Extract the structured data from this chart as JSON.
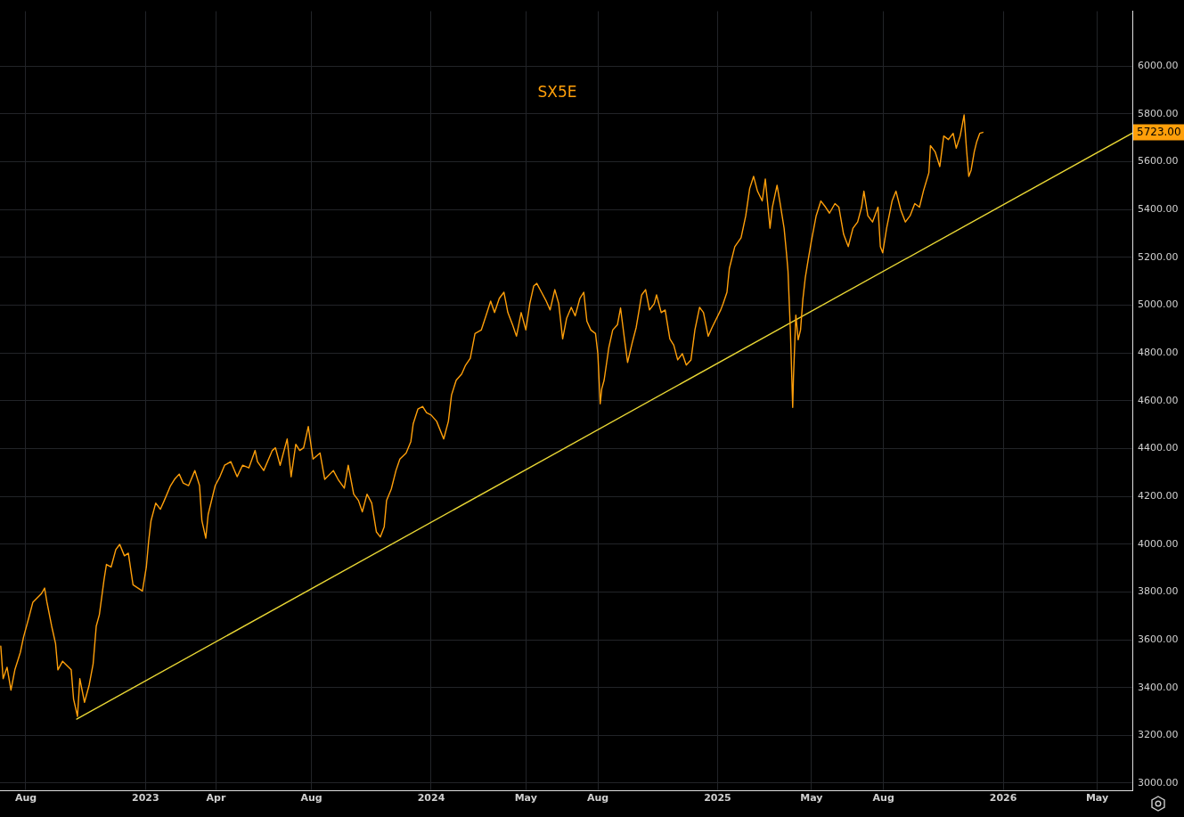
{
  "chart_data": {
    "type": "line",
    "title": "SX5E",
    "marker": "none",
    "grid": true,
    "xlim": [
      "2022-06-29",
      "2026-06-15"
    ],
    "ylim": [
      2970,
      6230
    ],
    "xticks": [
      {
        "value": "2022-08-01",
        "label": "Aug"
      },
      {
        "value": "2023-01-01",
        "label": "2023"
      },
      {
        "value": "2023-04-01",
        "label": "Apr"
      },
      {
        "value": "2023-08-01",
        "label": "Aug"
      },
      {
        "value": "2024-01-01",
        "label": "2024"
      },
      {
        "value": "2024-05-01",
        "label": "May"
      },
      {
        "value": "2024-08-01",
        "label": "Aug"
      },
      {
        "value": "2025-01-01",
        "label": "2025"
      },
      {
        "value": "2025-05-01",
        "label": "May"
      },
      {
        "value": "2025-08-01",
        "label": "Aug"
      },
      {
        "value": "2026-01-01",
        "label": "2026"
      },
      {
        "value": "2026-05-01",
        "label": "May"
      }
    ],
    "yticks": [
      {
        "value": 3000,
        "label": "3000.00"
      },
      {
        "value": 3200,
        "label": "3200.00"
      },
      {
        "value": 3400,
        "label": "3400.00"
      },
      {
        "value": 3600,
        "label": "3600.00"
      },
      {
        "value": 3800,
        "label": "3800.00"
      },
      {
        "value": 4000,
        "label": "4000.00"
      },
      {
        "value": 4200,
        "label": "4200.00"
      },
      {
        "value": 4400,
        "label": "4400.00"
      },
      {
        "value": 4600,
        "label": "4600.00"
      },
      {
        "value": 4800,
        "label": "4800.00"
      },
      {
        "value": 5000,
        "label": "5000.00"
      },
      {
        "value": 5200,
        "label": "5200.00"
      },
      {
        "value": 5400,
        "label": "5400.00"
      },
      {
        "value": 5600,
        "label": "5600.00"
      },
      {
        "value": 5800,
        "label": "5800.00"
      },
      {
        "value": 6000,
        "label": "6000.00"
      }
    ],
    "annotations": [
      "5723.00"
    ],
    "series": [
      {
        "color": "#ff9f0a",
        "x": [
          "2022-06-30",
          "2022-07-03",
          "2022-07-08",
          "2022-07-13",
          "2022-07-18",
          "2022-07-25",
          "2022-07-29",
          "2022-08-05",
          "2022-08-10",
          "2022-08-21",
          "2022-08-25",
          "2022-08-28",
          "2022-09-03",
          "2022-09-08",
          "2022-09-11",
          "2022-09-17",
          "2022-09-28",
          "2022-10-01",
          "2022-10-06",
          "2022-10-09",
          "2022-10-15",
          "2022-10-21",
          "2022-10-26",
          "2022-10-30",
          "2022-11-03",
          "2022-11-09",
          "2022-11-12",
          "2022-11-18",
          "2022-11-24",
          "2022-11-29",
          "2022-12-05",
          "2022-12-10",
          "2022-12-16",
          "2022-12-28",
          "2023-01-02",
          "2023-01-05",
          "2023-01-08",
          "2023-01-14",
          "2023-01-20",
          "2023-01-25",
          "2023-02-02",
          "2023-02-07",
          "2023-02-13",
          "2023-02-18",
          "2023-02-25",
          "2023-03-05",
          "2023-03-11",
          "2023-03-14",
          "2023-03-19",
          "2023-03-22",
          "2023-03-31",
          "2023-04-06",
          "2023-04-12",
          "2023-04-20",
          "2023-04-28",
          "2023-05-05",
          "2023-05-13",
          "2023-05-21",
          "2023-05-24",
          "2023-06-01",
          "2023-06-12",
          "2023-06-16",
          "2023-06-22",
          "2023-06-27",
          "2023-07-01",
          "2023-07-06",
          "2023-07-12",
          "2023-07-17",
          "2023-07-22",
          "2023-07-28",
          "2023-08-03",
          "2023-08-12",
          "2023-08-18",
          "2023-08-29",
          "2023-09-04",
          "2023-09-12",
          "2023-09-17",
          "2023-09-24",
          "2023-09-30",
          "2023-10-05",
          "2023-10-11",
          "2023-10-17",
          "2023-10-23",
          "2023-10-28",
          "2023-11-02",
          "2023-11-05",
          "2023-11-11",
          "2023-11-17",
          "2023-11-22",
          "2023-11-30",
          "2023-12-06",
          "2023-12-09",
          "2023-12-15",
          "2023-12-21",
          "2023-12-26",
          "2024-01-01",
          "2024-01-08",
          "2024-01-17",
          "2024-01-23",
          "2024-01-27",
          "2024-02-02",
          "2024-02-09",
          "2024-02-14",
          "2024-02-20",
          "2024-02-26",
          "2024-03-05",
          "2024-03-11",
          "2024-03-17",
          "2024-03-22",
          "2024-03-28",
          "2024-04-03",
          "2024-04-08",
          "2024-04-14",
          "2024-04-19",
          "2024-04-25",
          "2024-05-01",
          "2024-05-06",
          "2024-05-11",
          "2024-05-15",
          "2024-05-21",
          "2024-05-27",
          "2024-06-01",
          "2024-06-07",
          "2024-06-12",
          "2024-06-17",
          "2024-06-22",
          "2024-06-28",
          "2024-07-03",
          "2024-07-09",
          "2024-07-14",
          "2024-07-18",
          "2024-07-23",
          "2024-07-29",
          "2024-08-01",
          "2024-08-04",
          "2024-08-06",
          "2024-08-09",
          "2024-08-15",
          "2024-08-20",
          "2024-08-26",
          "2024-08-30",
          "2024-09-04",
          "2024-09-08",
          "2024-09-14",
          "2024-09-19",
          "2024-09-26",
          "2024-10-01",
          "2024-10-06",
          "2024-10-12",
          "2024-10-15",
          "2024-10-21",
          "2024-10-26",
          "2024-11-01",
          "2024-11-06",
          "2024-11-11",
          "2024-11-17",
          "2024-11-22",
          "2024-11-28",
          "2024-12-03",
          "2024-12-09",
          "2024-12-14",
          "2024-12-20",
          "2024-12-25",
          "2025-01-05",
          "2025-01-08",
          "2025-01-13",
          "2025-01-16",
          "2025-01-23",
          "2025-01-31",
          "2025-02-06",
          "2025-02-11",
          "2025-02-16",
          "2025-02-21",
          "2025-02-27",
          "2025-03-03",
          "2025-03-09",
          "2025-03-12",
          "2025-03-18",
          "2025-03-22",
          "2025-03-27",
          "2025-03-30",
          "2025-04-01",
          "2025-04-04",
          "2025-04-07",
          "2025-04-08",
          "2025-04-11",
          "2025-04-14",
          "2025-04-17",
          "2025-04-20",
          "2025-04-23",
          "2025-04-27",
          "2025-05-01",
          "2025-05-07",
          "2025-05-13",
          "2025-05-19",
          "2025-05-24",
          "2025-05-31",
          "2025-06-05",
          "2025-06-11",
          "2025-06-17",
          "2025-06-23",
          "2025-06-29",
          "2025-07-04",
          "2025-07-07",
          "2025-07-12",
          "2025-07-18",
          "2025-07-25",
          "2025-07-28",
          "2025-07-31",
          "2025-08-05",
          "2025-08-12",
          "2025-08-17",
          "2025-08-23",
          "2025-08-29",
          "2025-09-04",
          "2025-09-10",
          "2025-09-16",
          "2025-09-21",
          "2025-09-28",
          "2025-09-30",
          "2025-10-06",
          "2025-10-12",
          "2025-10-17",
          "2025-10-23",
          "2025-10-29",
          "2025-11-02",
          "2025-11-07",
          "2025-11-12",
          "2025-11-15",
          "2025-11-18",
          "2025-11-21",
          "2025-11-25",
          "2025-11-28",
          "2025-12-02",
          "2025-12-06"
        ],
        "values": [
          3573,
          3437,
          3485,
          3389,
          3474,
          3547,
          3610,
          3694,
          3757,
          3793,
          3816,
          3757,
          3657,
          3584,
          3474,
          3510,
          3474,
          3352,
          3279,
          3437,
          3338,
          3411,
          3499,
          3657,
          3705,
          3852,
          3915,
          3904,
          3977,
          3999,
          3951,
          3962,
          3830,
          3804,
          3904,
          4014,
          4098,
          4172,
          4146,
          4183,
          4245,
          4271,
          4293,
          4256,
          4245,
          4308,
          4245,
          4098,
          4025,
          4124,
          4245,
          4282,
          4330,
          4345,
          4282,
          4330,
          4319,
          4392,
          4345,
          4308,
          4392,
          4403,
          4330,
          4392,
          4440,
          4282,
          4418,
          4392,
          4403,
          4492,
          4356,
          4381,
          4271,
          4308,
          4271,
          4234,
          4330,
          4209,
          4183,
          4135,
          4209,
          4172,
          4051,
          4030,
          4073,
          4183,
          4230,
          4308,
          4356,
          4381,
          4429,
          4503,
          4565,
          4576,
          4550,
          4540,
          4514,
          4440,
          4514,
          4624,
          4686,
          4712,
          4749,
          4778,
          4881,
          4896,
          4955,
          5017,
          4969,
          5028,
          5054,
          4969,
          4918,
          4870,
          4969,
          4896,
          5006,
          5080,
          5091,
          5054,
          5017,
          4980,
          5065,
          5006,
          4859,
          4944,
          4991,
          4955,
          5028,
          5054,
          4933,
          4896,
          4881,
          4797,
          4587,
          4650,
          4686,
          4822,
          4896,
          4918,
          4988,
          4859,
          4760,
          4844,
          4907,
          5043,
          5065,
          4980,
          5006,
          5043,
          4969,
          4980,
          4859,
          4833,
          4771,
          4797,
          4749,
          4771,
          4896,
          4991,
          4969,
          4870,
          4907,
          4980,
          5006,
          5054,
          5153,
          5245,
          5282,
          5374,
          5488,
          5539,
          5477,
          5436,
          5528,
          5322,
          5410,
          5502,
          5425,
          5322,
          5219,
          5142,
          4896,
          4572,
          4701,
          4958,
          4855,
          4896,
          5025,
          5113,
          5194,
          5271,
          5374,
          5436,
          5410,
          5385,
          5425,
          5410,
          5297,
          5245,
          5322,
          5348,
          5410,
          5477,
          5374,
          5348,
          5410,
          5245,
          5219,
          5322,
          5436,
          5477,
          5399,
          5348,
          5374,
          5425,
          5410,
          5477,
          5554,
          5668,
          5642,
          5580,
          5708,
          5693,
          5719,
          5657,
          5708,
          5796,
          5657,
          5539,
          5565,
          5642,
          5682,
          5719,
          5723
        ]
      },
      {
        "color": "#e8d634",
        "x": [
          "2022-10-05",
          "2026-06-15"
        ],
        "values": [
          3268,
          5720
        ]
      }
    ]
  }
}
